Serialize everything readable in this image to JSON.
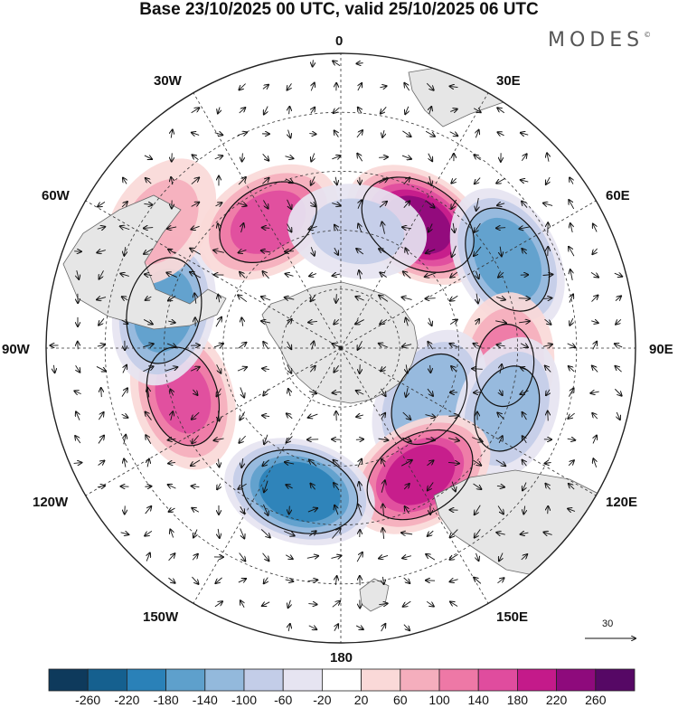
{
  "title": "Base 23/10/2025 00 UTC, valid 25/10/2025 06 UTC",
  "brand": "MODES",
  "brand_mark": "©",
  "map": {
    "projection": "south-polar-stereographic",
    "longitude_labels": {
      "lon_0": "0",
      "lon_30e": "30E",
      "lon_60e": "60E",
      "lon_90e": "90E",
      "lon_120e": "120E",
      "lon_150e": "150E",
      "lon_180": "180",
      "lon_150w": "150W",
      "lon_120w": "120W",
      "lon_90w": "90W",
      "lon_60w": "60W",
      "lon_30w": "30W"
    },
    "anomaly_centers": [
      {
        "lon_deg": 32,
        "colat_deg": 37,
        "value": 240
      },
      {
        "lon_deg": 62,
        "colat_deg": 48,
        "value": -180
      },
      {
        "lon_deg": 96,
        "colat_deg": 42,
        "value": 110
      },
      {
        "lon_deg": 120,
        "colat_deg": 26,
        "value": -140
      },
      {
        "lon_deg": 110,
        "colat_deg": 45,
        "value": -120
      },
      {
        "lon_deg": 148,
        "colat_deg": 38,
        "value": 200
      },
      {
        "lon_deg": 196,
        "colat_deg": 38,
        "value": -220
      },
      {
        "lon_deg": 253,
        "colat_deg": 42,
        "value": 150
      },
      {
        "lon_deg": 282,
        "colat_deg": 46,
        "value": -170
      },
      {
        "lon_deg": 305,
        "colat_deg": 56,
        "value": 70
      },
      {
        "lon_deg": 330,
        "colat_deg": 37,
        "value": 160
      },
      {
        "lon_deg": 8,
        "colat_deg": 30,
        "value": -70
      }
    ]
  },
  "vector_reference": {
    "label": "30"
  },
  "colorbar": {
    "colors": [
      "#0e3a5c",
      "#15608f",
      "#2a81b8",
      "#5ea0cc",
      "#93b9dc",
      "#c3cde8",
      "#e6e4f1",
      "#ffffff",
      "#fad9d8",
      "#f5aebd",
      "#ee78a6",
      "#e04c9e",
      "#c41a8a",
      "#8e0a7c",
      "#560865"
    ],
    "tick_labels": [
      "-260",
      "-220",
      "-180",
      "-140",
      "-100",
      "-60",
      "-20",
      "20",
      "60",
      "100",
      "140",
      "180",
      "220",
      "260"
    ]
  }
}
